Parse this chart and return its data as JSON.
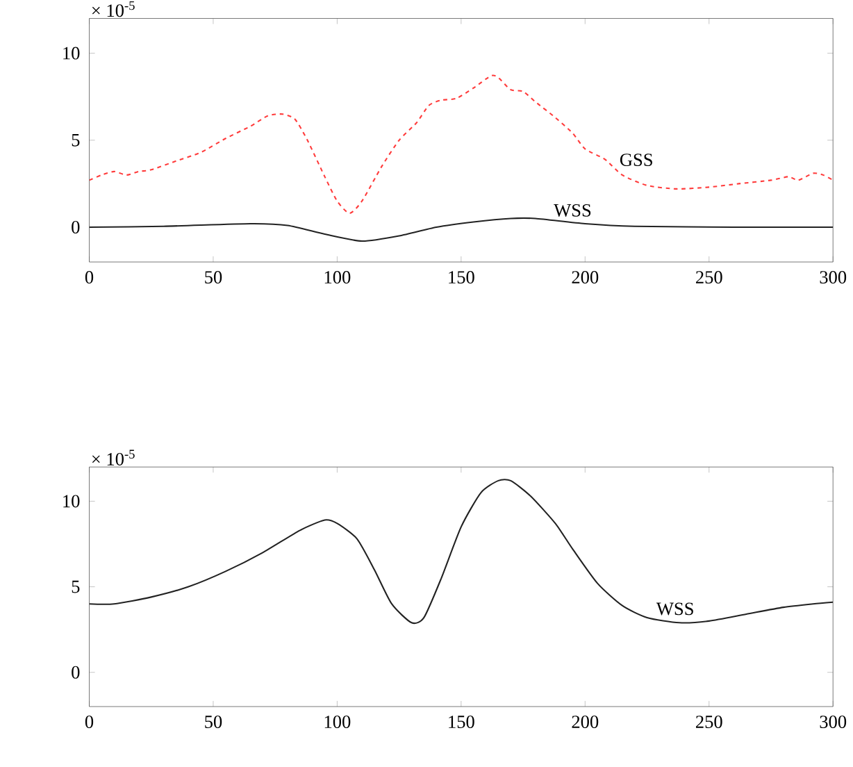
{
  "chart_data": [
    {
      "type": "line",
      "xlim": [
        0,
        300
      ],
      "ylim": [
        -2,
        12
      ],
      "xticks": [
        0,
        50,
        100,
        150,
        200,
        250,
        300
      ],
      "yticks": [
        0,
        5,
        10
      ],
      "grid": false,
      "legend": false,
      "series": [
        {
          "name": "GSS",
          "color": "#ff3b3b",
          "line_style": "dashed",
          "x": [
            0,
            5,
            10,
            15,
            20,
            25,
            35,
            45,
            55,
            65,
            72,
            78,
            83,
            88,
            95,
            100,
            105,
            110,
            118,
            125,
            132,
            137,
            142,
            148,
            155,
            162,
            165,
            170,
            175,
            180,
            188,
            195,
            200,
            208,
            215,
            225,
            237,
            250,
            262,
            275,
            282,
            286,
            292,
            296,
            300
          ],
          "values": [
            2.7,
            3.0,
            3.2,
            3.0,
            3.2,
            3.3,
            3.8,
            4.3,
            5.1,
            5.8,
            6.4,
            6.5,
            6.2,
            5.0,
            2.9,
            1.5,
            0.8,
            1.5,
            3.5,
            5.0,
            6.0,
            7.0,
            7.3,
            7.4,
            8.0,
            8.7,
            8.6,
            7.9,
            7.8,
            7.2,
            6.3,
            5.4,
            4.5,
            3.9,
            3.0,
            2.4,
            2.2,
            2.3,
            2.5,
            2.7,
            2.9,
            2.7,
            3.1,
            3.0,
            2.7
          ]
        },
        {
          "name": "WSS",
          "color": "#222222",
          "line_style": "solid",
          "x": [
            0,
            30,
            65,
            80,
            95,
            110,
            125,
            140,
            155,
            170,
            180,
            200,
            220,
            260,
            300
          ],
          "values": [
            0,
            0.05,
            0.2,
            0.1,
            -0.4,
            -0.8,
            -0.5,
            0.0,
            0.3,
            0.5,
            0.5,
            0.2,
            0.05,
            0,
            0
          ]
        }
      ],
      "annotations": [
        "× 10$^{-5}$"
      ]
    },
    {
      "type": "line",
      "xlim": [
        0,
        300
      ],
      "ylim": [
        -2,
        12
      ],
      "xticks": [
        0,
        50,
        100,
        150,
        200,
        250,
        300
      ],
      "yticks": [
        0,
        5,
        10
      ],
      "grid": false,
      "legend": false,
      "series": [
        {
          "name": "WSS",
          "color": "#222222",
          "line_style": "solid",
          "x": [
            0,
            10,
            25,
            40,
            55,
            70,
            85,
            95,
            100,
            108,
            115,
            122,
            130,
            135,
            142,
            150,
            158,
            165,
            170,
            178,
            188,
            195,
            205,
            215,
            225,
            238,
            250,
            265,
            280,
            292,
            300
          ],
          "values": [
            4.0,
            4.0,
            4.4,
            5.0,
            5.9,
            7.0,
            8.3,
            8.9,
            8.7,
            7.8,
            6.0,
            4.0,
            2.9,
            3.2,
            5.5,
            8.5,
            10.5,
            11.2,
            11.2,
            10.3,
            8.7,
            7.2,
            5.2,
            3.9,
            3.2,
            2.9,
            3.0,
            3.4,
            3.8,
            4.0,
            4.1
          ]
        }
      ],
      "annotations": [
        "× 10$^{-5}$"
      ]
    }
  ]
}
